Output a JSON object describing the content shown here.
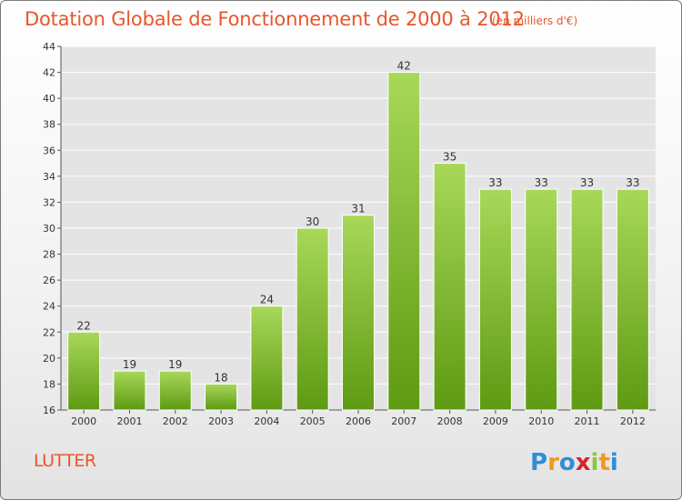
{
  "title": "Dotation Globale de Fonctionnement de 2000 à 2012",
  "unit_note": "(en milliers d'€)",
  "commune": "LUTTER",
  "logo_text": "Proxiti",
  "colors": {
    "title": "#e8562a",
    "bar_top": "#a8d85a",
    "bar_bottom": "#5e9a12",
    "plot_bg": "#e4e4e4",
    "grid": "#ffffff"
  },
  "chart_data": {
    "type": "bar",
    "categories": [
      "2000",
      "2001",
      "2002",
      "2003",
      "2004",
      "2005",
      "2006",
      "2007",
      "2008",
      "2009",
      "2010",
      "2011",
      "2012"
    ],
    "values": [
      22,
      19,
      19,
      18,
      24,
      30,
      31,
      42,
      35,
      33,
      33,
      33,
      33
    ],
    "data_labels": [
      "22",
      "19",
      "19",
      "18",
      "24",
      "30",
      "31",
      "42",
      "35",
      "33",
      "33",
      "33",
      "33"
    ],
    "yticks": [
      "16",
      "18",
      "20",
      "22",
      "24",
      "26",
      "28",
      "30",
      "32",
      "34",
      "36",
      "38",
      "40",
      "42",
      "44"
    ],
    "ylim": [
      16,
      44
    ],
    "grid": true,
    "legend": "none"
  }
}
